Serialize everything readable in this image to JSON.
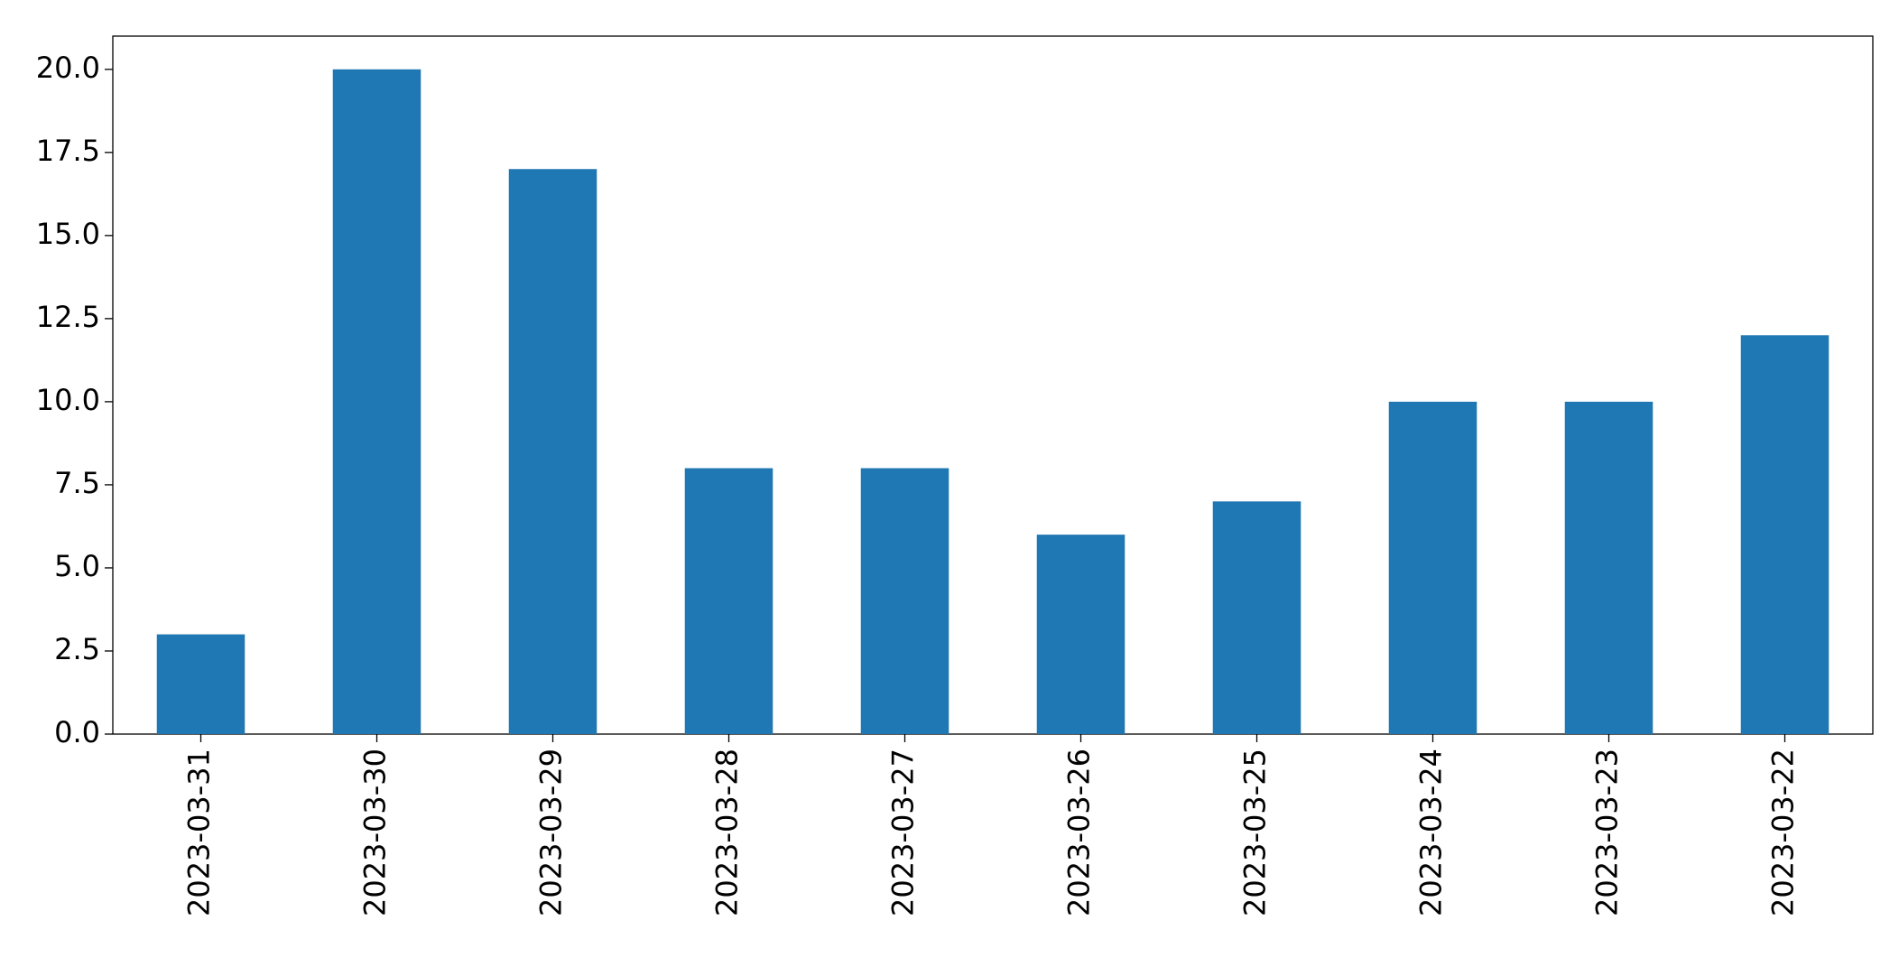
{
  "chart_data": {
    "type": "bar",
    "categories": [
      "2023-03-31",
      "2023-03-30",
      "2023-03-29",
      "2023-03-28",
      "2023-03-27",
      "2023-03-26",
      "2023-03-25",
      "2023-03-24",
      "2023-03-23",
      "2023-03-22"
    ],
    "values": [
      3,
      20,
      17,
      8,
      8,
      6,
      7,
      10,
      10,
      12
    ],
    "color": "#1f77b4",
    "ylim": [
      0,
      21
    ],
    "yticks": [
      {
        "value": 0,
        "label": "0.0"
      },
      2.5,
      {
        "value": 5,
        "label": "5.0"
      },
      7.5,
      {
        "value": 10,
        "label": "10.0"
      },
      12.5,
      {
        "value": 15,
        "label": "15.0"
      },
      17.5,
      {
        "value": 20,
        "label": "20.0"
      }
    ],
    "grid": false
  }
}
